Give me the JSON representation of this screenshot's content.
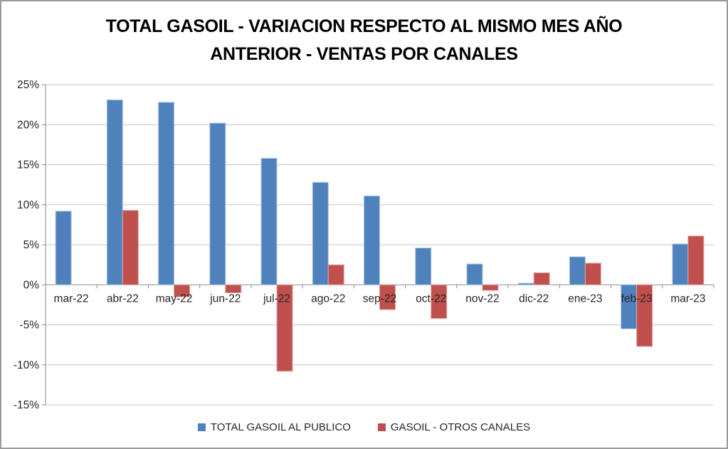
{
  "chart_data": {
    "type": "bar",
    "title": "TOTAL GASOIL - VARIACION RESPECTO AL MISMO MES AÑO ANTERIOR - VENTAS POR CANALES",
    "categories": [
      "mar-22",
      "abr-22",
      "may-22",
      "jun-22",
      "jul-22",
      "ago-22",
      "sep-22",
      "oct-22",
      "nov-22",
      "dic-22",
      "ene-23",
      "feb-23",
      "mar-23"
    ],
    "series": [
      {
        "name": "TOTAL GASOIL AL PUBLICO",
        "color": "#4F81BD",
        "border_color": "#AFC6E2",
        "values": [
          9.2,
          23.1,
          22.8,
          20.2,
          15.8,
          12.8,
          11.1,
          4.6,
          2.6,
          0.2,
          3.5,
          -5.5,
          5.1
        ]
      },
      {
        "name": "GASOIL - OTROS CANALES",
        "color": "#C0504D",
        "border_color": "#E0A5A3",
        "values": [
          0.0,
          9.3,
          -1.5,
          -1.0,
          -10.8,
          2.5,
          -3.1,
          -4.2,
          -0.7,
          1.5,
          2.7,
          -7.7,
          6.1
        ]
      }
    ],
    "y_axis": {
      "min": -15,
      "max": 25,
      "step": 5,
      "tick_suffix": "%"
    },
    "xlabel": "",
    "ylabel": "",
    "grid": true,
    "legend_position": "bottom",
    "style": {
      "gridline_color": "#C6C6C6",
      "axis_color": "#8C8C8C",
      "label_color": "#262626"
    }
  }
}
